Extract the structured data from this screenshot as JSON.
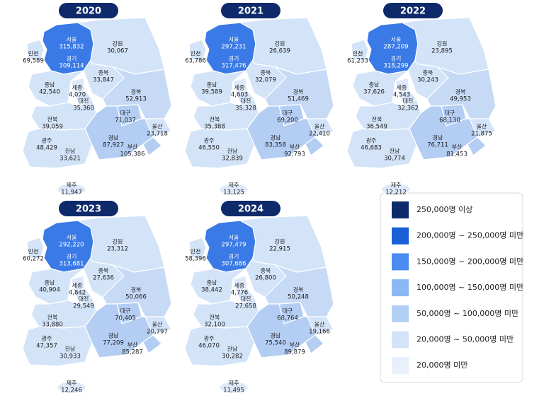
{
  "regions": [
    {
      "name": "서울",
      "color": "#2e6ee0"
    },
    {
      "name": "경기",
      "color": "#3a7ae6"
    },
    {
      "name": "인천",
      "color": "#d3e3f8"
    },
    {
      "name": "강원",
      "color": "#d3e3f8"
    },
    {
      "name": "충북",
      "color": "#d3e3f8"
    },
    {
      "name": "충남",
      "color": "#d3e3f8"
    },
    {
      "name": "세종",
      "color": "#dde9fa"
    },
    {
      "name": "대전",
      "color": "#d3e3f8"
    },
    {
      "name": "경북",
      "color": "#c6daf6"
    },
    {
      "name": "대구",
      "color": "#b3cdf3"
    },
    {
      "name": "울산",
      "color": "#d3e3f8"
    },
    {
      "name": "전북",
      "color": "#d3e3f8"
    },
    {
      "name": "광주",
      "color": "#d3e3f8"
    },
    {
      "name": "전남",
      "color": "#d3e3f8"
    },
    {
      "name": "경남",
      "color": "#b3cdf3"
    },
    {
      "name": "부산",
      "color": "#b3cdf3"
    },
    {
      "name": "제주",
      "color": "#dde9fa"
    }
  ],
  "years": [
    {
      "year": "2020",
      "values": [
        "315,832",
        "309,114",
        "69,589",
        "30,067",
        "33,847",
        "42,540",
        "4,070",
        "35,360",
        "52,913",
        "71,037",
        "23,718",
        "39,059",
        "48,429",
        "33,621",
        "87,927",
        "105,386",
        "11,947"
      ]
    },
    {
      "year": "2021",
      "values": [
        "297,231",
        "317,476",
        "63,786",
        "26,639",
        "32,079",
        "39,589",
        "4,603",
        "35,328",
        "51,469",
        "69,200",
        "22,410",
        "35,388",
        "46,550",
        "32,839",
        "83,358",
        "92,793",
        "13,125"
      ]
    },
    {
      "year": "2022",
      "values": [
        "287,209",
        "318,299",
        "61,233",
        "23,895",
        "30,243",
        "37,626",
        "4,543",
        "32,362",
        "49,953",
        "68,130",
        "21,875",
        "36,549",
        "46,683",
        "30,774",
        "76,711",
        "81,453",
        "12,212"
      ]
    },
    {
      "year": "2023",
      "values": [
        "292,220",
        "313,681",
        "60,272",
        "23,312",
        "27,636",
        "40,904",
        "4,842",
        "29,549",
        "50,066",
        "70,405",
        "20,797",
        "33,880",
        "47,357",
        "30,933",
        "77,209",
        "85,287",
        "12,246"
      ]
    },
    {
      "year": "2024",
      "values": [
        "297,479",
        "307,686",
        "58,396",
        "22,915",
        "26,800",
        "38,442",
        "4,776",
        "27,658",
        "50,248",
        "68,764",
        "19,166",
        "32,100",
        "46,070",
        "30,282",
        "75,540",
        "89,879",
        "11,495"
      ]
    }
  ],
  "legend": [
    {
      "label": "250,000명 이상",
      "color": "#0d2a6b"
    },
    {
      "label": "200,000명 ~ 250,000명 미만",
      "color": "#1a5fd8"
    },
    {
      "label": "150,000명 ~ 200,000명 미만",
      "color": "#4b8cf0"
    },
    {
      "label": "100,000명 ~ 150,000명 미만",
      "color": "#8bb8f5"
    },
    {
      "label": "50,000명 ~ 100,000명 미만",
      "color": "#b3cff5"
    },
    {
      "label": "20,000명 ~ 50,000명 미만",
      "color": "#d3e3f8"
    },
    {
      "label": "20,000명 미만",
      "color": "#e8f0fc"
    }
  ]
}
